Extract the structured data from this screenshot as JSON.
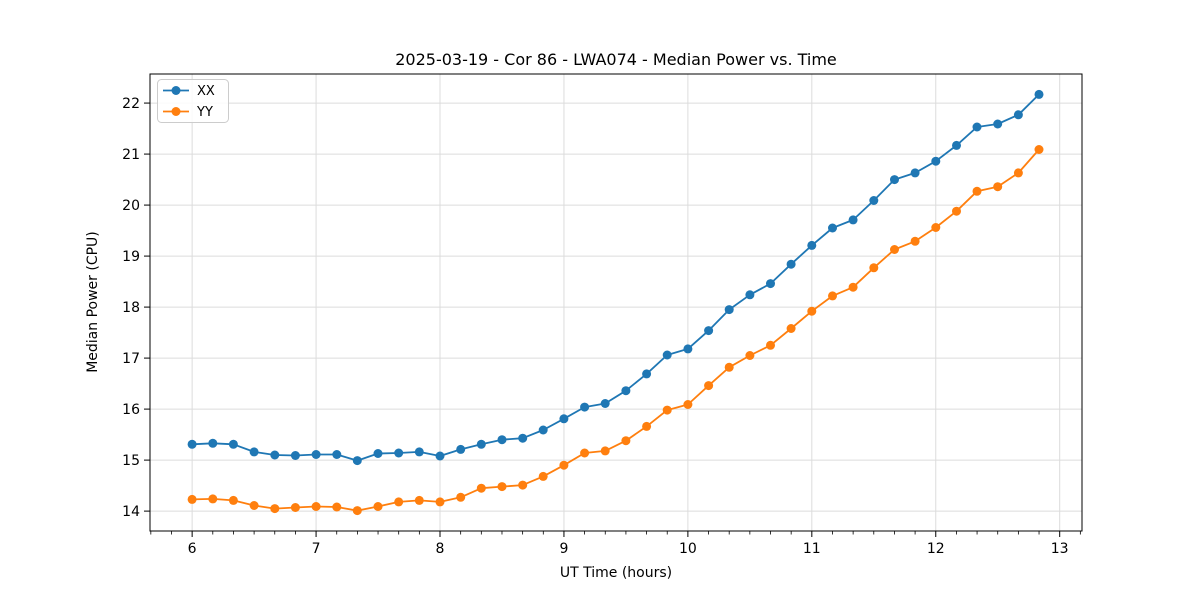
{
  "chart_data": {
    "type": "line",
    "title": "2025-03-19 - Cor 86 - LWA074 - Median Power vs. Time",
    "xlabel": "UT Time (hours)",
    "ylabel": "Median Power (CPU)",
    "x": [
      6.0,
      6.167,
      6.333,
      6.5,
      6.667,
      6.833,
      7.0,
      7.167,
      7.333,
      7.5,
      7.667,
      7.833,
      8.0,
      8.167,
      8.333,
      8.5,
      8.667,
      8.833,
      9.0,
      9.167,
      9.333,
      9.5,
      9.667,
      9.833,
      10.0,
      10.167,
      10.333,
      10.5,
      10.667,
      10.833,
      11.0,
      11.167,
      11.333,
      11.5,
      11.667,
      11.833,
      12.0,
      12.167,
      12.333,
      12.5,
      12.667,
      12.833
    ],
    "series": [
      {
        "name": "XX",
        "color": "#1f77b4",
        "values": [
          15.31,
          15.33,
          15.31,
          15.16,
          15.1,
          15.09,
          15.11,
          15.11,
          14.99,
          15.13,
          15.14,
          15.16,
          15.08,
          15.21,
          15.31,
          15.4,
          15.43,
          15.59,
          15.81,
          16.04,
          16.11,
          16.36,
          16.69,
          17.06,
          17.18,
          17.54,
          17.95,
          18.24,
          18.46,
          18.84,
          19.21,
          19.55,
          19.71,
          20.09,
          20.5,
          20.63,
          20.86,
          21.17,
          21.53,
          21.59,
          21.77,
          22.17
        ]
      },
      {
        "name": "YY",
        "color": "#ff7f0e",
        "values": [
          14.23,
          14.24,
          14.21,
          14.11,
          14.05,
          14.07,
          14.09,
          14.08,
          14.01,
          14.09,
          14.18,
          14.21,
          14.18,
          14.27,
          14.45,
          14.48,
          14.51,
          14.68,
          14.9,
          15.14,
          15.18,
          15.38,
          15.66,
          15.98,
          16.09,
          16.46,
          16.82,
          17.05,
          17.25,
          17.58,
          17.92,
          18.22,
          18.39,
          18.77,
          19.13,
          19.29,
          19.56,
          19.88,
          20.27,
          20.36,
          20.63,
          21.09
        ]
      }
    ],
    "xlim": [
      5.66,
      13.18
    ],
    "ylim": [
      13.61,
      22.57
    ],
    "x_ticks": [
      6,
      7,
      8,
      9,
      10,
      11,
      12,
      13
    ],
    "y_ticks": [
      14,
      15,
      16,
      17,
      18,
      19,
      20,
      21,
      22
    ],
    "x_minor_interval": 0.16667,
    "grid": true,
    "grid_color": "#dcdcdc",
    "legend_position": "upper left"
  }
}
